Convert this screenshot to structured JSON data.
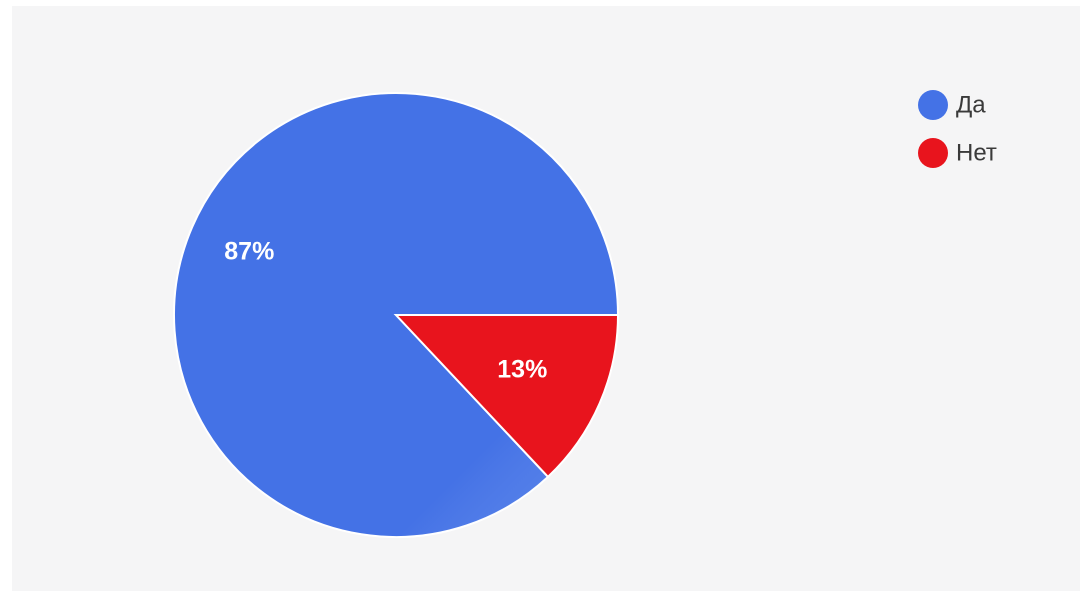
{
  "chart_data": {
    "type": "pie",
    "categories": [
      "Да",
      "Нет"
    ],
    "values": [
      87,
      13
    ],
    "value_labels": [
      "87%",
      "13%"
    ],
    "colors": [
      "#4472e6",
      "#e8141d"
    ],
    "legend": {
      "placement": "top-right",
      "entries": [
        "Да",
        "Нет"
      ]
    }
  }
}
